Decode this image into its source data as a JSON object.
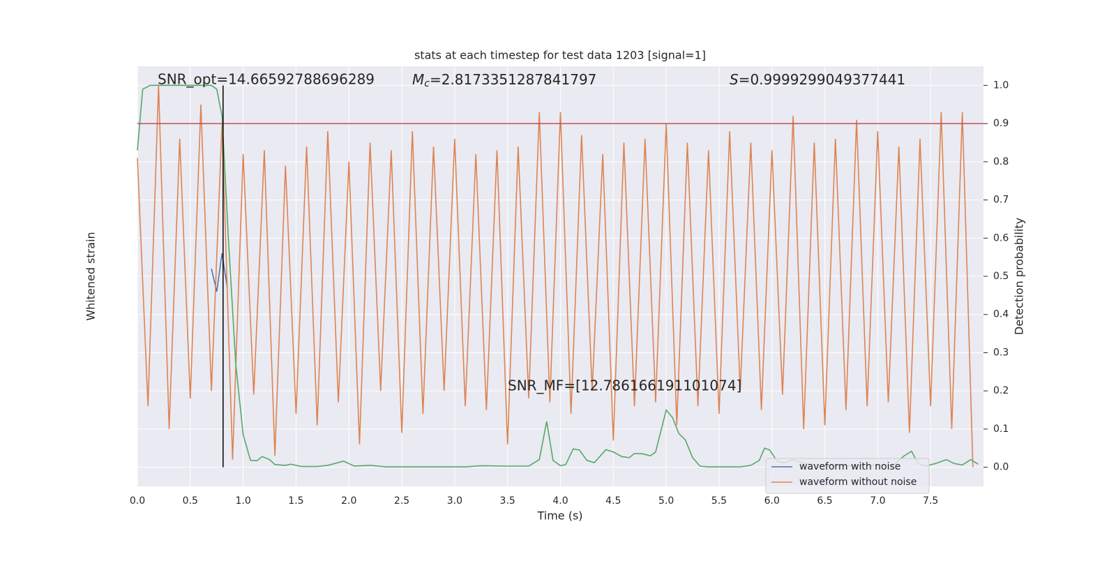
{
  "chart_data": {
    "type": "line",
    "title": "stats at each timestep for test data 1203 [signal=1]",
    "xlabel": "Time (s)",
    "ylabel": "Whitened strain",
    "y2label": "Detection probability",
    "xlim": [
      0,
      8
    ],
    "xticks": [
      {
        "value": 0,
        "label": "0.0"
      },
      {
        "value": 0.5,
        "label": "0.5"
      },
      {
        "value": 1,
        "label": "1.0"
      },
      {
        "value": 1.5,
        "label": "1.5"
      },
      {
        "value": 2,
        "label": "2.0"
      },
      {
        "value": 2.5,
        "label": "2.5"
      },
      {
        "value": 3,
        "label": "3.0"
      },
      {
        "value": 3.5,
        "label": "3.5"
      },
      {
        "value": 4,
        "label": "4.0"
      },
      {
        "value": 4.5,
        "label": "4.5"
      },
      {
        "value": 5,
        "label": "5.0"
      },
      {
        "value": 5.5,
        "label": "5.5"
      },
      {
        "value": 6,
        "label": "6.0"
      },
      {
        "value": 6.5,
        "label": "6.5"
      },
      {
        "value": 7,
        "label": "7.0"
      },
      {
        "value": 7.5,
        "label": "7.5"
      }
    ],
    "ylim": [
      -5.5,
      5.5
    ],
    "y2lim": [
      -0.05,
      1.05
    ],
    "y2ticks": [
      {
        "value": 0,
        "label": "0.0"
      },
      {
        "value": 0.1,
        "label": "0.1"
      },
      {
        "value": 0.2,
        "label": "0.2"
      },
      {
        "value": 0.3,
        "label": "0.3"
      },
      {
        "value": 0.4,
        "label": "0.4"
      },
      {
        "value": 0.5,
        "label": "0.5"
      },
      {
        "value": 0.6,
        "label": "0.6"
      },
      {
        "value": 0.7,
        "label": "0.7"
      },
      {
        "value": 0.8,
        "label": "0.8"
      },
      {
        "value": 0.9,
        "label": "0.9"
      },
      {
        "value": 1,
        "label": "1.0"
      }
    ],
    "grid": true,
    "legend": "lower right",
    "threshold": {
      "value": 0.9,
      "color": "#c44e52"
    },
    "marker": {
      "x": 0.81,
      "color": "#000000"
    },
    "annotations": {
      "snr_opt": "SNR_opt=14.66592788696289",
      "mc": {
        "symbol": "M",
        "subscript": "c",
        "text": "=2.8173351287841797"
      },
      "s": {
        "symbol": "S",
        "text": "=0.9999299049377441"
      },
      "snr_mf": "SNR_MF=[12.786166191101074]"
    },
    "series": [
      {
        "name": "waveform with noise",
        "color": "#4c72b0",
        "axis": "y",
        "x": [
          0.7,
          0.75,
          0.8,
          0.85
        ],
        "values": [
          0.2,
          -0.4,
          0.6,
          -0.3
        ]
      },
      {
        "name": "waveform without noise",
        "color": "#dd8452",
        "axis": "y",
        "x": [
          0,
          0.1,
          0.2,
          0.3,
          0.4,
          0.5,
          0.6,
          0.7,
          0.8,
          0.9,
          1,
          1.1,
          1.2,
          1.3,
          1.4,
          1.5,
          1.6,
          1.7,
          1.8,
          1.9,
          2,
          2.1,
          2.2,
          2.3,
          2.4,
          2.5,
          2.6,
          2.7,
          2.8,
          2.9,
          3,
          3.1,
          3.2,
          3.3,
          3.4,
          3.5,
          3.6,
          3.7,
          3.8,
          3.9,
          4,
          4.1,
          4.2,
          4.3,
          4.4,
          4.5,
          4.6,
          4.7,
          4.8,
          4.9,
          5,
          5.1,
          5.2,
          5.3,
          5.4,
          5.5,
          5.6,
          5.7,
          5.8,
          5.9,
          6,
          6.1,
          6.2,
          6.3,
          6.4,
          6.5,
          6.6,
          6.7,
          6.8,
          6.9,
          7,
          7.1,
          7.2,
          7.3,
          7.4,
          7.5,
          7.6,
          7.7,
          7.8,
          7.9
        ],
        "values": [
          3.1,
          -3.4,
          5.0,
          -4.0,
          3.6,
          -3.2,
          4.5,
          -3.0,
          4.0,
          -4.8,
          3.2,
          -3.1,
          3.3,
          -4.7,
          2.9,
          -3.6,
          3.4,
          -3.9,
          3.8,
          -3.3,
          3.0,
          -4.4,
          3.5,
          -3.0,
          3.3,
          -4.1,
          3.8,
          -3.6,
          3.4,
          -3.0,
          3.6,
          -3.4,
          3.2,
          -3.5,
          3.3,
          -4.4,
          3.4,
          -3.2,
          4.3,
          -3.3,
          4.3,
          -3.6,
          3.7,
          -3.0,
          3.2,
          -4.3,
          3.5,
          -3.4,
          3.6,
          -3.3,
          4.0,
          -3.9,
          3.5,
          -3.4,
          3.3,
          -3.6,
          3.8,
          -3.0,
          3.5,
          -3.5,
          3.3,
          -3.1,
          4.2,
          -4.0,
          3.5,
          -3.9,
          3.6,
          -3.5,
          4.1,
          -3.4,
          3.8,
          -3.3,
          3.4,
          -4.1,
          3.6,
          -3.4,
          4.3,
          -4.0,
          4.3,
          -5.0
        ]
      },
      {
        "name": null,
        "color": "#55a868",
        "axis": "y2",
        "x": [
          0,
          0.05,
          0.12,
          0.3,
          0.5,
          0.7,
          0.75,
          0.8,
          0.86,
          0.93,
          1.0,
          1.07,
          1.13,
          1.18,
          1.25,
          1.3,
          1.4,
          1.45,
          1.55,
          1.7,
          1.8,
          1.95,
          2.05,
          2.2,
          2.35,
          2.6,
          3.1,
          3.25,
          3.5,
          3.7,
          3.8,
          3.87,
          3.93,
          4.0,
          4.05,
          4.12,
          4.18,
          4.25,
          4.32,
          4.43,
          4.5,
          4.58,
          4.65,
          4.7,
          4.78,
          4.85,
          4.9,
          5.0,
          5.06,
          5.12,
          5.18,
          5.25,
          5.32,
          5.4,
          5.7,
          5.8,
          5.88,
          5.93,
          5.98,
          6.05,
          6.12,
          6.2,
          6.3,
          6.5,
          6.8,
          7.0,
          7.15,
          7.25,
          7.32,
          7.38,
          7.45,
          7.55,
          7.65,
          7.72,
          7.8,
          7.88,
          7.95
        ],
        "values": [
          0.83,
          0.99,
          1.0,
          1.0,
          1.0,
          1.0,
          0.99,
          0.92,
          0.6,
          0.27,
          0.085,
          0.018,
          0.017,
          0.028,
          0.02,
          0.007,
          0.005,
          0.008,
          0.002,
          0.002,
          0.005,
          0.016,
          0.003,
          0.005,
          0.001,
          0.001,
          0.001,
          0.004,
          0.003,
          0.003,
          0.02,
          0.12,
          0.018,
          0.004,
          0.007,
          0.048,
          0.045,
          0.018,
          0.012,
          0.046,
          0.04,
          0.028,
          0.025,
          0.036,
          0.035,
          0.03,
          0.04,
          0.15,
          0.13,
          0.088,
          0.072,
          0.025,
          0.003,
          0.001,
          0.001,
          0.005,
          0.018,
          0.05,
          0.045,
          0.015,
          0.012,
          0.02,
          0.01,
          0.004,
          0.004,
          0.006,
          0.005,
          0.03,
          0.042,
          0.01,
          0.003,
          0.01,
          0.02,
          0.01,
          0.006,
          0.02,
          0.008
        ]
      }
    ]
  }
}
